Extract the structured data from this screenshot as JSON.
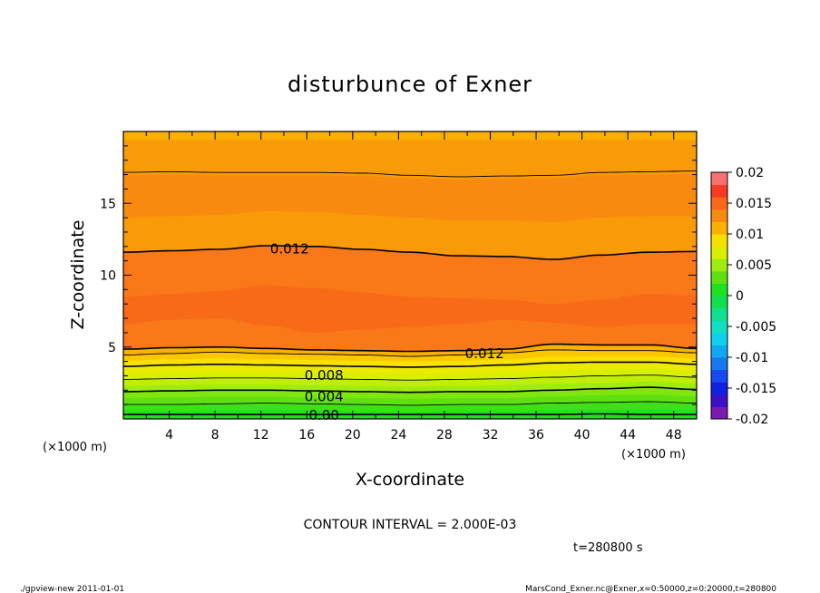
{
  "chart_data": {
    "type": "contour",
    "title": "disturbunce of Exner",
    "xlabel": "X-coordinate",
    "ylabel": "Z-coordinate",
    "x_unit_label": "(×1000 m)",
    "y_unit_label": "(×1000 m)",
    "xlim": [
      0,
      50
    ],
    "ylim": [
      0,
      20
    ],
    "x_ticks": [
      4,
      8,
      12,
      16,
      20,
      24,
      28,
      32,
      36,
      40,
      44,
      48
    ],
    "y_ticks": [
      5,
      10,
      15
    ],
    "contour_interval_text": "CONTOUR INTERVAL = 2.000E-03",
    "time_label": "t=280800 s",
    "contour_labels": [
      {
        "text": "0.012",
        "x": 14.5,
        "z": 11.9
      },
      {
        "text": "0.012",
        "x": 31.5,
        "z": 4.6
      },
      {
        "text": "0.008",
        "x": 17.5,
        "z": 3.1
      },
      {
        "text": "0.004",
        "x": 17.5,
        "z": 1.6
      },
      {
        "text": "0.00",
        "x": 17.5,
        "z": 0.3
      }
    ],
    "colorbar": {
      "ticks": [
        "0.02",
        "0.015",
        "0.01",
        "0.005",
        "0",
        "-0.005",
        "-0.01",
        "-0.015",
        "-0.02"
      ],
      "levels": [
        -0.02,
        -0.018,
        -0.016,
        -0.014,
        -0.012,
        -0.01,
        -0.008,
        -0.006,
        -0.004,
        -0.002,
        0,
        0.002,
        0.004,
        0.006,
        0.008,
        0.01,
        0.012,
        0.014,
        0.016,
        0.018,
        0.02
      ],
      "colors": [
        "#7a1ab0",
        "#3a10c8",
        "#1020e0",
        "#1848f0",
        "#1878f0",
        "#10a8f0",
        "#10d0f0",
        "#10e0c0",
        "#10e090",
        "#10e050",
        "#20e020",
        "#60e010",
        "#a0ec10",
        "#d8f000",
        "#f8e000",
        "#fbb000",
        "#f98a10",
        "#f96a18",
        "#f83a20",
        "#f87070"
      ]
    },
    "bands": [
      {
        "level": 0.0,
        "color": "#20e020",
        "lower": 0,
        "profile": [
          0,
          0,
          0,
          0,
          0,
          0,
          0,
          0,
          0,
          0,
          0,
          0,
          0
        ]
      },
      {
        "level": 0.001,
        "color": "#40e018",
        "lower": 0.55,
        "profile": [
          0,
          0,
          0.05,
          0.08,
          0.05,
          0,
          -0.05,
          0,
          0,
          0.05,
          0.1,
          0.1,
          0.05
        ]
      },
      {
        "level": 0.002,
        "color": "#60e010",
        "lower": 1.0,
        "profile": [
          0,
          0,
          0.05,
          0.1,
          0.05,
          0,
          -0.05,
          0,
          0,
          0.1,
          0.15,
          0.2,
          0.1
        ]
      },
      {
        "level": 0.003,
        "color": "#80e610",
        "lower": 1.45,
        "profile": [
          0,
          0.05,
          0.1,
          0.1,
          0.05,
          0,
          -0.05,
          0,
          0,
          0.1,
          0.2,
          0.25,
          0.1
        ]
      },
      {
        "level": 0.004,
        "color": "#a0ec10",
        "lower": 1.9,
        "profile": [
          0,
          0.05,
          0.1,
          0.1,
          0.05,
          0,
          -0.05,
          0,
          0,
          0.1,
          0.2,
          0.3,
          0.15
        ]
      },
      {
        "level": 0.005,
        "color": "#c0ee08",
        "lower": 2.3,
        "profile": [
          0,
          0.05,
          0.1,
          0.1,
          0.05,
          0,
          -0.05,
          0,
          0.05,
          0.15,
          0.2,
          0.3,
          0.15
        ]
      },
      {
        "level": 0.006,
        "color": "#d8f000",
        "lower": 2.75,
        "profile": [
          0,
          0.05,
          0.1,
          0.1,
          0.05,
          0,
          -0.05,
          0,
          0.05,
          0.15,
          0.25,
          0.3,
          0.15
        ]
      },
      {
        "level": 0.007,
        "color": "#ecea00",
        "lower": 3.2,
        "profile": [
          0,
          0.05,
          0.15,
          0.1,
          0.05,
          0,
          -0.05,
          0,
          0.05,
          0.2,
          0.25,
          0.3,
          0.15
        ]
      },
      {
        "level": 0.008,
        "color": "#f8e000",
        "lower": 3.65,
        "profile": [
          0,
          0.1,
          0.15,
          0.1,
          0.05,
          0,
          -0.05,
          0,
          0.1,
          0.25,
          0.3,
          0.3,
          0.15
        ]
      },
      {
        "level": 0.009,
        "color": "#fbc800",
        "lower": 4.05,
        "profile": [
          0,
          0.1,
          0.15,
          0.1,
          0.05,
          0,
          -0.05,
          0,
          0.1,
          0.3,
          0.3,
          0.3,
          0.15
        ]
      },
      {
        "level": 0.01,
        "color": "#fbb000",
        "lower": 4.45,
        "profile": [
          0,
          0.1,
          0.2,
          0.1,
          0.05,
          0,
          -0.1,
          0,
          0.15,
          0.35,
          0.3,
          0.3,
          0.15
        ]
      },
      {
        "level": 0.011,
        "color": "#f99a08",
        "lower": 4.85,
        "profile": [
          0,
          0.1,
          0.15,
          0.05,
          -0.05,
          -0.1,
          -0.15,
          -0.1,
          0,
          0.35,
          0.3,
          0.3,
          0.05
        ]
      },
      {
        "level": 0.012,
        "color": "#f98a10",
        "lower": 14.0,
        "profile": [
          0,
          0.1,
          0.2,
          0.45,
          0.4,
          0.2,
          0,
          -0.2,
          -0.2,
          -0.3,
          0,
          0.1,
          0.1
        ]
      },
      {
        "level": 0.011,
        "color": "#f99a08",
        "lower": 16.95,
        "profile": [
          0,
          0.05,
          0,
          0,
          0,
          -0.05,
          -0.2,
          -0.3,
          -0.25,
          -0.2,
          0,
          0.05,
          0.1
        ]
      },
      {
        "level": 0.01,
        "color": "#fbb000",
        "lower": 19.4,
        "profile": [
          0,
          0,
          0,
          0,
          0,
          0,
          0,
          0,
          0,
          0,
          0,
          0,
          0
        ]
      }
    ],
    "inner_bands": [
      {
        "level": 0.013,
        "color": "#f97818",
        "top": 11.6,
        "profile": [
          0,
          0.1,
          0.2,
          0.45,
          0.4,
          0.2,
          0,
          -0.25,
          -0.3,
          -0.5,
          -0.2,
          0,
          0.05
        ],
        "bottom": 4.85,
        "bottom_profile": [
          0,
          0.1,
          0.15,
          0.05,
          -0.05,
          -0.1,
          -0.15,
          -0.1,
          0,
          0.35,
          0.3,
          0.3,
          0.05
        ]
      },
      {
        "level": 0.014,
        "color": "#f96a18",
        "top": 8.5,
        "profile": [
          0,
          0.2,
          0.4,
          0.8,
          0.6,
          0.3,
          0,
          -0.1,
          -0.2,
          -0.5,
          -0.2,
          0.2,
          0.1
        ],
        "bottom": 6.6,
        "bottom_profile": [
          0,
          0.3,
          0.4,
          -0.1,
          -0.6,
          -0.4,
          -0.2,
          0,
          0.3,
          0.1,
          -0.2,
          0,
          0
        ]
      }
    ],
    "contour_lines": [
      {
        "level": 0.0,
        "base": 0.3,
        "profile": [
          0,
          0,
          0,
          0,
          0,
          0,
          0,
          0,
          0,
          0,
          0.05,
          0,
          0
        ],
        "thick": true
      },
      {
        "level": 0.002,
        "base": 1.0,
        "profile": [
          0,
          0,
          0.05,
          0.1,
          0.05,
          0,
          -0.05,
          0,
          0,
          0.1,
          0.15,
          0.2,
          0.1
        ],
        "thick": false
      },
      {
        "level": 0.004,
        "base": 1.9,
        "profile": [
          0,
          0.05,
          0.1,
          0.1,
          0.05,
          0,
          -0.05,
          0,
          0,
          0.1,
          0.2,
          0.3,
          0.15
        ],
        "thick": true
      },
      {
        "level": 0.006,
        "base": 2.75,
        "profile": [
          0,
          0.05,
          0.1,
          0.1,
          0.05,
          0,
          -0.05,
          0,
          0.05,
          0.15,
          0.25,
          0.3,
          0.15
        ],
        "thick": false
      },
      {
        "level": 0.008,
        "base": 3.65,
        "profile": [
          0,
          0.1,
          0.15,
          0.1,
          0.05,
          0,
          -0.05,
          0,
          0.1,
          0.25,
          0.3,
          0.3,
          0.15
        ],
        "thick": true
      },
      {
        "level": 0.01,
        "base": 4.45,
        "profile": [
          0,
          0.1,
          0.2,
          0.1,
          0.05,
          0,
          -0.1,
          0,
          0.15,
          0.35,
          0.3,
          0.3,
          0.15
        ],
        "thick": false
      },
      {
        "level": 0.012,
        "base": 4.85,
        "profile": [
          0,
          0.1,
          0.15,
          0.05,
          -0.05,
          -0.1,
          -0.15,
          -0.1,
          0,
          0.35,
          0.3,
          0.3,
          0.05
        ],
        "thick": true
      },
      {
        "level": 0.012,
        "base": 11.6,
        "profile": [
          0,
          0.1,
          0.2,
          0.45,
          0.4,
          0.2,
          0,
          -0.25,
          -0.3,
          -0.5,
          -0.2,
          0,
          0.05
        ],
        "thick": true
      },
      {
        "level": 0.01,
        "base": 17.15,
        "profile": [
          0,
          0.05,
          0,
          0,
          0,
          -0.05,
          -0.2,
          -0.3,
          -0.25,
          -0.2,
          0,
          0.05,
          0.1
        ],
        "thick": false
      }
    ]
  },
  "footer": {
    "left": "./gpview-new   2011-01-01",
    "right": "MarsCond_Exner.nc@Exner,x=0:50000,z=0:20000,t=280800"
  }
}
